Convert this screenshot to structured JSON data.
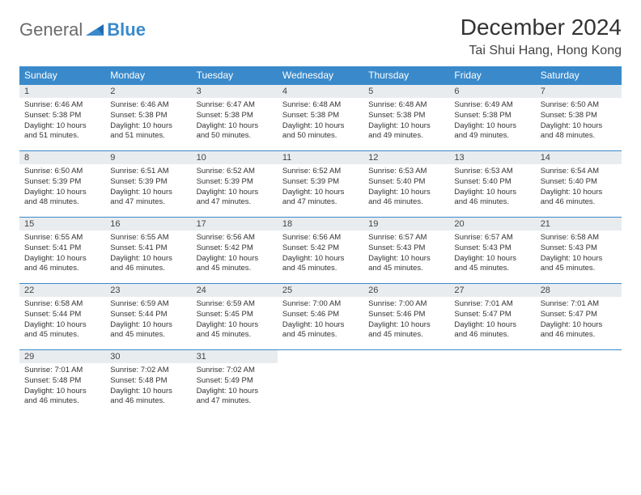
{
  "brand": {
    "word1": "General",
    "word2": "Blue"
  },
  "title": "December 2024",
  "location": "Tai Shui Hang, Hong Kong",
  "colors": {
    "header_bg": "#3a8acb",
    "header_fg": "#ffffff",
    "daynum_bg": "#e9ecef",
    "row_border": "#3a8acb",
    "body_fg": "#333333",
    "logo_gray": "#6b6b6b",
    "logo_blue": "#3a8acb"
  },
  "weekdays": [
    "Sunday",
    "Monday",
    "Tuesday",
    "Wednesday",
    "Thursday",
    "Friday",
    "Saturday"
  ],
  "labels": {
    "sunrise": "Sunrise: ",
    "sunset": "Sunset: ",
    "daylight": "Daylight: "
  },
  "weeks": [
    [
      {
        "day": 1,
        "sunrise": "6:46 AM",
        "sunset": "5:38 PM",
        "daylight": "10 hours and 51 minutes."
      },
      {
        "day": 2,
        "sunrise": "6:46 AM",
        "sunset": "5:38 PM",
        "daylight": "10 hours and 51 minutes."
      },
      {
        "day": 3,
        "sunrise": "6:47 AM",
        "sunset": "5:38 PM",
        "daylight": "10 hours and 50 minutes."
      },
      {
        "day": 4,
        "sunrise": "6:48 AM",
        "sunset": "5:38 PM",
        "daylight": "10 hours and 50 minutes."
      },
      {
        "day": 5,
        "sunrise": "6:48 AM",
        "sunset": "5:38 PM",
        "daylight": "10 hours and 49 minutes."
      },
      {
        "day": 6,
        "sunrise": "6:49 AM",
        "sunset": "5:38 PM",
        "daylight": "10 hours and 49 minutes."
      },
      {
        "day": 7,
        "sunrise": "6:50 AM",
        "sunset": "5:38 PM",
        "daylight": "10 hours and 48 minutes."
      }
    ],
    [
      {
        "day": 8,
        "sunrise": "6:50 AM",
        "sunset": "5:39 PM",
        "daylight": "10 hours and 48 minutes."
      },
      {
        "day": 9,
        "sunrise": "6:51 AM",
        "sunset": "5:39 PM",
        "daylight": "10 hours and 47 minutes."
      },
      {
        "day": 10,
        "sunrise": "6:52 AM",
        "sunset": "5:39 PM",
        "daylight": "10 hours and 47 minutes."
      },
      {
        "day": 11,
        "sunrise": "6:52 AM",
        "sunset": "5:39 PM",
        "daylight": "10 hours and 47 minutes."
      },
      {
        "day": 12,
        "sunrise": "6:53 AM",
        "sunset": "5:40 PM",
        "daylight": "10 hours and 46 minutes."
      },
      {
        "day": 13,
        "sunrise": "6:53 AM",
        "sunset": "5:40 PM",
        "daylight": "10 hours and 46 minutes."
      },
      {
        "day": 14,
        "sunrise": "6:54 AM",
        "sunset": "5:40 PM",
        "daylight": "10 hours and 46 minutes."
      }
    ],
    [
      {
        "day": 15,
        "sunrise": "6:55 AM",
        "sunset": "5:41 PM",
        "daylight": "10 hours and 46 minutes."
      },
      {
        "day": 16,
        "sunrise": "6:55 AM",
        "sunset": "5:41 PM",
        "daylight": "10 hours and 46 minutes."
      },
      {
        "day": 17,
        "sunrise": "6:56 AM",
        "sunset": "5:42 PM",
        "daylight": "10 hours and 45 minutes."
      },
      {
        "day": 18,
        "sunrise": "6:56 AM",
        "sunset": "5:42 PM",
        "daylight": "10 hours and 45 minutes."
      },
      {
        "day": 19,
        "sunrise": "6:57 AM",
        "sunset": "5:43 PM",
        "daylight": "10 hours and 45 minutes."
      },
      {
        "day": 20,
        "sunrise": "6:57 AM",
        "sunset": "5:43 PM",
        "daylight": "10 hours and 45 minutes."
      },
      {
        "day": 21,
        "sunrise": "6:58 AM",
        "sunset": "5:43 PM",
        "daylight": "10 hours and 45 minutes."
      }
    ],
    [
      {
        "day": 22,
        "sunrise": "6:58 AM",
        "sunset": "5:44 PM",
        "daylight": "10 hours and 45 minutes."
      },
      {
        "day": 23,
        "sunrise": "6:59 AM",
        "sunset": "5:44 PM",
        "daylight": "10 hours and 45 minutes."
      },
      {
        "day": 24,
        "sunrise": "6:59 AM",
        "sunset": "5:45 PM",
        "daylight": "10 hours and 45 minutes."
      },
      {
        "day": 25,
        "sunrise": "7:00 AM",
        "sunset": "5:46 PM",
        "daylight": "10 hours and 45 minutes."
      },
      {
        "day": 26,
        "sunrise": "7:00 AM",
        "sunset": "5:46 PM",
        "daylight": "10 hours and 45 minutes."
      },
      {
        "day": 27,
        "sunrise": "7:01 AM",
        "sunset": "5:47 PM",
        "daylight": "10 hours and 46 minutes."
      },
      {
        "day": 28,
        "sunrise": "7:01 AM",
        "sunset": "5:47 PM",
        "daylight": "10 hours and 46 minutes."
      }
    ],
    [
      {
        "day": 29,
        "sunrise": "7:01 AM",
        "sunset": "5:48 PM",
        "daylight": "10 hours and 46 minutes."
      },
      {
        "day": 30,
        "sunrise": "7:02 AM",
        "sunset": "5:48 PM",
        "daylight": "10 hours and 46 minutes."
      },
      {
        "day": 31,
        "sunrise": "7:02 AM",
        "sunset": "5:49 PM",
        "daylight": "10 hours and 47 minutes."
      },
      null,
      null,
      null,
      null
    ]
  ]
}
